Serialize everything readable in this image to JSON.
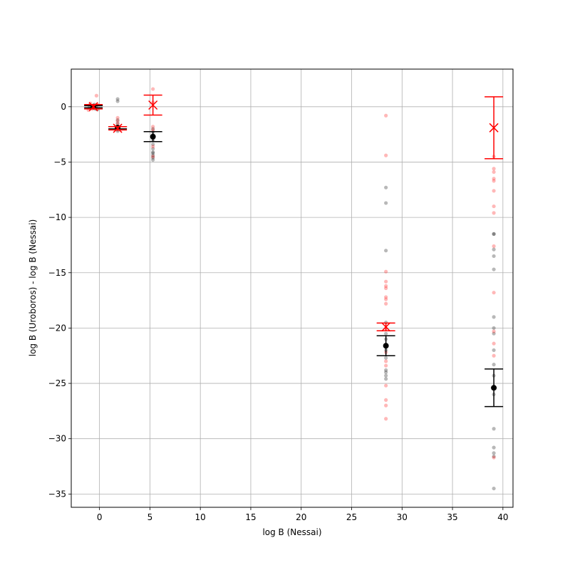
{
  "chart_data": {
    "type": "scatter",
    "title": "",
    "xlabel": "log B (Nessai)",
    "ylabel": "log B (Uroboros) - log B (Nessai)",
    "xlim": [
      -2.8,
      41.0
    ],
    "ylim": [
      -36.2,
      3.4
    ],
    "xticks": [
      0,
      5,
      10,
      15,
      20,
      25,
      30,
      35,
      40
    ],
    "yticks": [
      0,
      -5,
      -10,
      -15,
      -20,
      -25,
      -30,
      -35
    ],
    "grid": true,
    "colors": {
      "series_a": "#000000",
      "series_b": "#ff0000",
      "grid": "#b0b0b0"
    },
    "series": [
      {
        "color": "#000000",
        "marker": "circle",
        "points": [
          {
            "x": -1.0,
            "y": 0.05
          },
          {
            "x": -0.8,
            "y": -0.1
          },
          {
            "x": -0.6,
            "y": 0.1
          },
          {
            "x": -0.4,
            "y": -0.2
          },
          {
            "x": -0.3,
            "y": 0.0
          },
          {
            "x": -0.2,
            "y": -0.25
          },
          {
            "x": -0.5,
            "y": 0.2
          },
          {
            "x": 1.8,
            "y": 0.7
          },
          {
            "x": 1.8,
            "y": 0.5
          },
          {
            "x": 1.8,
            "y": -1.2
          },
          {
            "x": 1.8,
            "y": -1.5
          },
          {
            "x": 1.8,
            "y": -1.8
          },
          {
            "x": 1.8,
            "y": -2.0
          },
          {
            "x": 1.8,
            "y": -2.2
          },
          {
            "x": 5.3,
            "y": -2.0
          },
          {
            "x": 5.3,
            "y": -2.3
          },
          {
            "x": 5.3,
            "y": -2.6
          },
          {
            "x": 5.3,
            "y": -3.0
          },
          {
            "x": 5.3,
            "y": -3.4
          },
          {
            "x": 5.3,
            "y": -3.8
          },
          {
            "x": 5.3,
            "y": -4.1
          },
          {
            "x": 5.3,
            "y": -4.2
          },
          {
            "x": 5.3,
            "y": -4.4
          },
          {
            "x": 5.3,
            "y": -4.6
          },
          {
            "x": 5.3,
            "y": -4.8
          },
          {
            "x": 28.4,
            "y": -7.3
          },
          {
            "x": 28.4,
            "y": -8.7
          },
          {
            "x": 28.4,
            "y": -13.0
          },
          {
            "x": 28.4,
            "y": -19.5
          },
          {
            "x": 28.4,
            "y": -20.5
          },
          {
            "x": 28.4,
            "y": -21.0
          },
          {
            "x": 28.4,
            "y": -22.0
          },
          {
            "x": 28.4,
            "y": -22.7
          },
          {
            "x": 28.4,
            "y": -23.8
          },
          {
            "x": 28.4,
            "y": -24.0
          },
          {
            "x": 28.4,
            "y": -24.3
          },
          {
            "x": 28.4,
            "y": -24.6
          },
          {
            "x": 39.1,
            "y": -11.5
          },
          {
            "x": 39.1,
            "y": -11.5
          },
          {
            "x": 39.1,
            "y": -12.9
          },
          {
            "x": 39.1,
            "y": -13.5
          },
          {
            "x": 39.1,
            "y": -14.7
          },
          {
            "x": 39.1,
            "y": -19.0
          },
          {
            "x": 39.1,
            "y": -20.0
          },
          {
            "x": 39.1,
            "y": -20.5
          },
          {
            "x": 39.1,
            "y": -22.0
          },
          {
            "x": 39.1,
            "y": -23.3
          },
          {
            "x": 39.1,
            "y": -24.3
          },
          {
            "x": 39.1,
            "y": -26.0
          },
          {
            "x": 39.1,
            "y": -29.1
          },
          {
            "x": 39.1,
            "y": -30.8
          },
          {
            "x": 39.1,
            "y": -31.3
          },
          {
            "x": 39.1,
            "y": -31.6
          },
          {
            "x": 39.1,
            "y": -34.5
          }
        ],
        "mean_points": [
          {
            "x": -0.6,
            "y": 0.0,
            "yerr": 0.1
          },
          {
            "x": 1.8,
            "y": -1.9,
            "yerr": 0.1
          },
          {
            "x": 5.3,
            "y": -2.7,
            "yerr": 0.45
          },
          {
            "x": 28.4,
            "y": -21.6,
            "yerr": 0.9
          },
          {
            "x": 39.1,
            "y": -25.4,
            "yerr": 1.7
          }
        ]
      },
      {
        "color": "#ff0000",
        "marker": "x",
        "points": [
          {
            "x": -0.9,
            "y": 0.3
          },
          {
            "x": -0.7,
            "y": -0.2
          },
          {
            "x": -0.5,
            "y": 0.1
          },
          {
            "x": -0.3,
            "y": 1.0
          },
          {
            "x": -0.2,
            "y": 0.2
          },
          {
            "x": -1.1,
            "y": -0.3
          },
          {
            "x": -0.4,
            "y": -0.1
          },
          {
            "x": 1.8,
            "y": -1.0
          },
          {
            "x": 1.8,
            "y": -1.3
          },
          {
            "x": 1.8,
            "y": -1.6
          },
          {
            "x": 1.8,
            "y": -1.9
          },
          {
            "x": 1.8,
            "y": -2.1
          },
          {
            "x": 5.3,
            "y": 1.6
          },
          {
            "x": 5.3,
            "y": 0.4
          },
          {
            "x": 5.3,
            "y": -1.8
          },
          {
            "x": 5.3,
            "y": -2.1
          },
          {
            "x": 5.3,
            "y": -3.6
          },
          {
            "x": 5.3,
            "y": -4.5
          },
          {
            "x": 28.4,
            "y": -0.8
          },
          {
            "x": 28.4,
            "y": -4.4
          },
          {
            "x": 28.4,
            "y": -14.9
          },
          {
            "x": 28.4,
            "y": -15.8
          },
          {
            "x": 28.4,
            "y": -16.2
          },
          {
            "x": 28.4,
            "y": -16.4
          },
          {
            "x": 28.4,
            "y": -17.2
          },
          {
            "x": 28.4,
            "y": -17.4
          },
          {
            "x": 28.4,
            "y": -17.8
          },
          {
            "x": 28.4,
            "y": -20.0
          },
          {
            "x": 28.4,
            "y": -22.2
          },
          {
            "x": 28.4,
            "y": -23.0
          },
          {
            "x": 28.4,
            "y": -23.4
          },
          {
            "x": 28.4,
            "y": -25.2
          },
          {
            "x": 28.4,
            "y": -26.5
          },
          {
            "x": 28.4,
            "y": -27.0
          },
          {
            "x": 28.4,
            "y": -28.2
          },
          {
            "x": 39.1,
            "y": -4.5
          },
          {
            "x": 39.1,
            "y": -5.6
          },
          {
            "x": 39.1,
            "y": -5.9
          },
          {
            "x": 39.1,
            "y": -6.5
          },
          {
            "x": 39.1,
            "y": -6.7
          },
          {
            "x": 39.1,
            "y": -7.6
          },
          {
            "x": 39.1,
            "y": -9.0
          },
          {
            "x": 39.1,
            "y": -9.6
          },
          {
            "x": 39.1,
            "y": -12.6
          },
          {
            "x": 39.1,
            "y": -16.8
          },
          {
            "x": 39.1,
            "y": -20.3
          },
          {
            "x": 39.1,
            "y": -21.4
          },
          {
            "x": 39.1,
            "y": -22.5
          },
          {
            "x": 39.1,
            "y": -31.7
          }
        ],
        "mean_points": [
          {
            "x": -0.6,
            "y": 0.0,
            "yerr": 0.2
          },
          {
            "x": 1.8,
            "y": -1.95,
            "yerr": 0.15
          },
          {
            "x": 5.3,
            "y": 0.15,
            "yerr": 0.9
          },
          {
            "x": 28.4,
            "y": -19.9,
            "yerr": 0.35
          },
          {
            "x": 39.1,
            "y": -1.9,
            "yerr": 2.8
          }
        ]
      }
    ]
  }
}
